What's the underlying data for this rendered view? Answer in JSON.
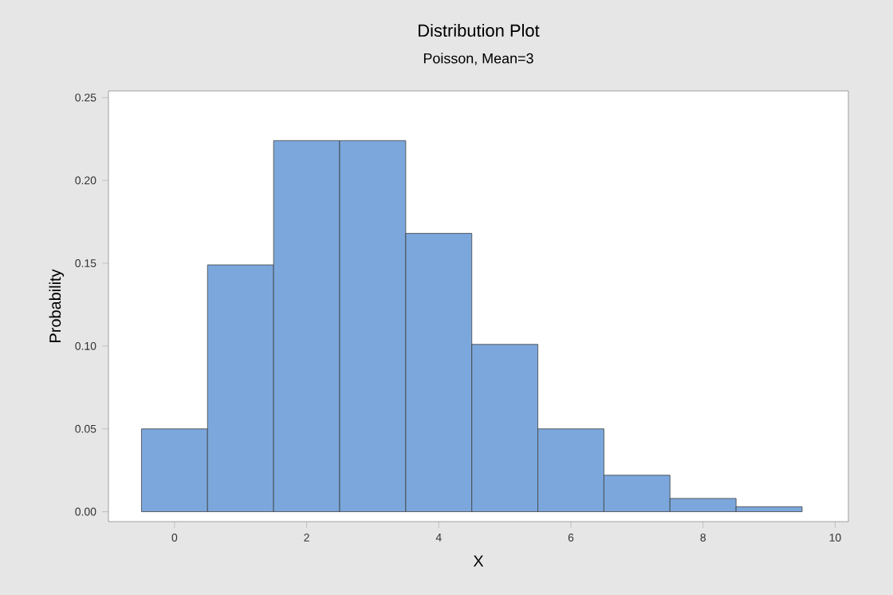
{
  "chart_data": {
    "type": "bar",
    "title": "Distribution Plot",
    "subtitle": "Poisson, Mean=3",
    "xlabel": "X",
    "ylabel": "Probability",
    "x": [
      0,
      1,
      2,
      3,
      4,
      5,
      6,
      7,
      8,
      9
    ],
    "values": [
      0.05,
      0.149,
      0.224,
      0.224,
      0.168,
      0.101,
      0.05,
      0.022,
      0.008,
      0.003
    ],
    "color": "#7ba7dc",
    "xlim": [
      -1,
      10.2
    ],
    "ylim": [
      -0.006,
      0.254
    ],
    "xticks": [
      0,
      2,
      4,
      6,
      8,
      10
    ],
    "yticks": [
      {
        "value": 0,
        "label": "0.00"
      },
      {
        "value": 0.05,
        "label": "0.05"
      },
      {
        "value": 0.1,
        "label": "0.10"
      },
      {
        "value": 0.15,
        "label": "0.15"
      },
      {
        "value": 0.2,
        "label": "0.20"
      },
      {
        "value": 0.25,
        "label": "0.25"
      }
    ]
  }
}
